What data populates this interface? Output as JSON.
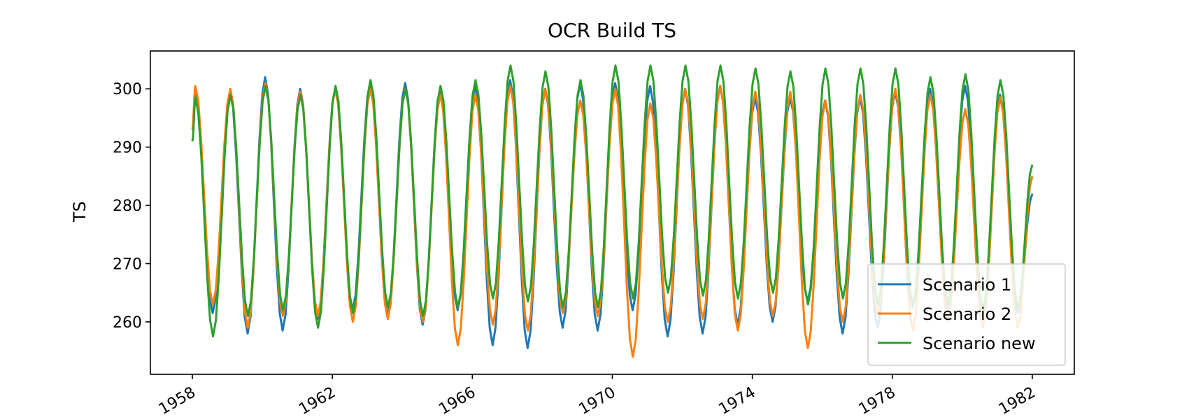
{
  "chart_data": {
    "type": "line",
    "title": "OCR Build TS",
    "xlabel": "",
    "ylabel": "TS",
    "xlim": [
      1956.8,
      1983.2
    ],
    "ylim": [
      251.0,
      306.5
    ],
    "x_ticks": [
      1958,
      1962,
      1966,
      1970,
      1974,
      1978,
      1982
    ],
    "x_tick_labels": [
      "1958",
      "1962",
      "1966",
      "1970",
      "1974",
      "1978",
      "1982"
    ],
    "y_ticks": [
      260,
      270,
      280,
      290,
      300
    ],
    "y_tick_labels": [
      "260",
      "270",
      "280",
      "290",
      "300"
    ],
    "grid": false,
    "legend_position": "lower-right",
    "series": [
      {
        "name": "Scenario 1",
        "color": "#1f77b4",
        "peaks": [
          299.0,
          299.5,
          302.0,
          300.0,
          300.0,
          301.0,
          301.0,
          300.0,
          300.5,
          301.5,
          300.0,
          301.0,
          301.0,
          300.5,
          300.0,
          300.5,
          298.5,
          298.5,
          298.0,
          298.5,
          299.5,
          300.0,
          300.5,
          299.0
        ],
        "troughs": [
          261.5,
          258.0,
          258.5,
          260.5,
          262.0,
          261.0,
          259.5,
          262.0,
          256.0,
          255.5,
          259.0,
          258.5,
          262.0,
          257.5,
          258.0,
          259.5,
          260.0,
          263.5,
          258.0,
          259.0,
          262.5,
          261.5,
          261.0,
          261.5
        ],
        "start": 293.0,
        "end": 282.0
      },
      {
        "name": "Scenario 2",
        "color": "#ff7f0e",
        "peaks": [
          300.5,
          300.0,
          301.0,
          299.5,
          300.0,
          300.0,
          300.0,
          299.0,
          299.0,
          300.5,
          300.0,
          298.0,
          300.0,
          297.5,
          300.0,
          300.5,
          299.5,
          299.5,
          298.0,
          299.0,
          300.0,
          299.0,
          296.5,
          298.5
        ],
        "troughs": [
          263.0,
          259.0,
          261.0,
          261.0,
          260.0,
          260.5,
          260.0,
          256.0,
          259.5,
          258.5,
          261.5,
          261.0,
          254.0,
          260.0,
          260.5,
          258.5,
          261.0,
          255.5,
          260.0,
          261.0,
          258.5,
          260.5,
          259.0,
          259.0
        ],
        "start": 293.0,
        "end": 285.0
      },
      {
        "name": "Scenario new",
        "color": "#2ca02c",
        "peaks": [
          298.5,
          299.0,
          300.5,
          299.0,
          300.5,
          301.5,
          300.0,
          300.5,
          301.5,
          304.0,
          303.0,
          301.5,
          304.0,
          304.0,
          304.0,
          304.0,
          303.5,
          303.0,
          303.5,
          303.5,
          303.5,
          302.0,
          302.5,
          301.5
        ],
        "troughs": [
          257.5,
          261.0,
          262.0,
          259.0,
          261.5,
          262.5,
          261.0,
          262.5,
          264.0,
          263.5,
          262.5,
          262.5,
          264.0,
          265.0,
          264.5,
          264.0,
          265.0,
          263.0,
          264.0,
          263.0,
          262.5,
          263.0,
          262.0,
          262.5
        ],
        "start": 291.0,
        "end": 287.0
      }
    ]
  }
}
